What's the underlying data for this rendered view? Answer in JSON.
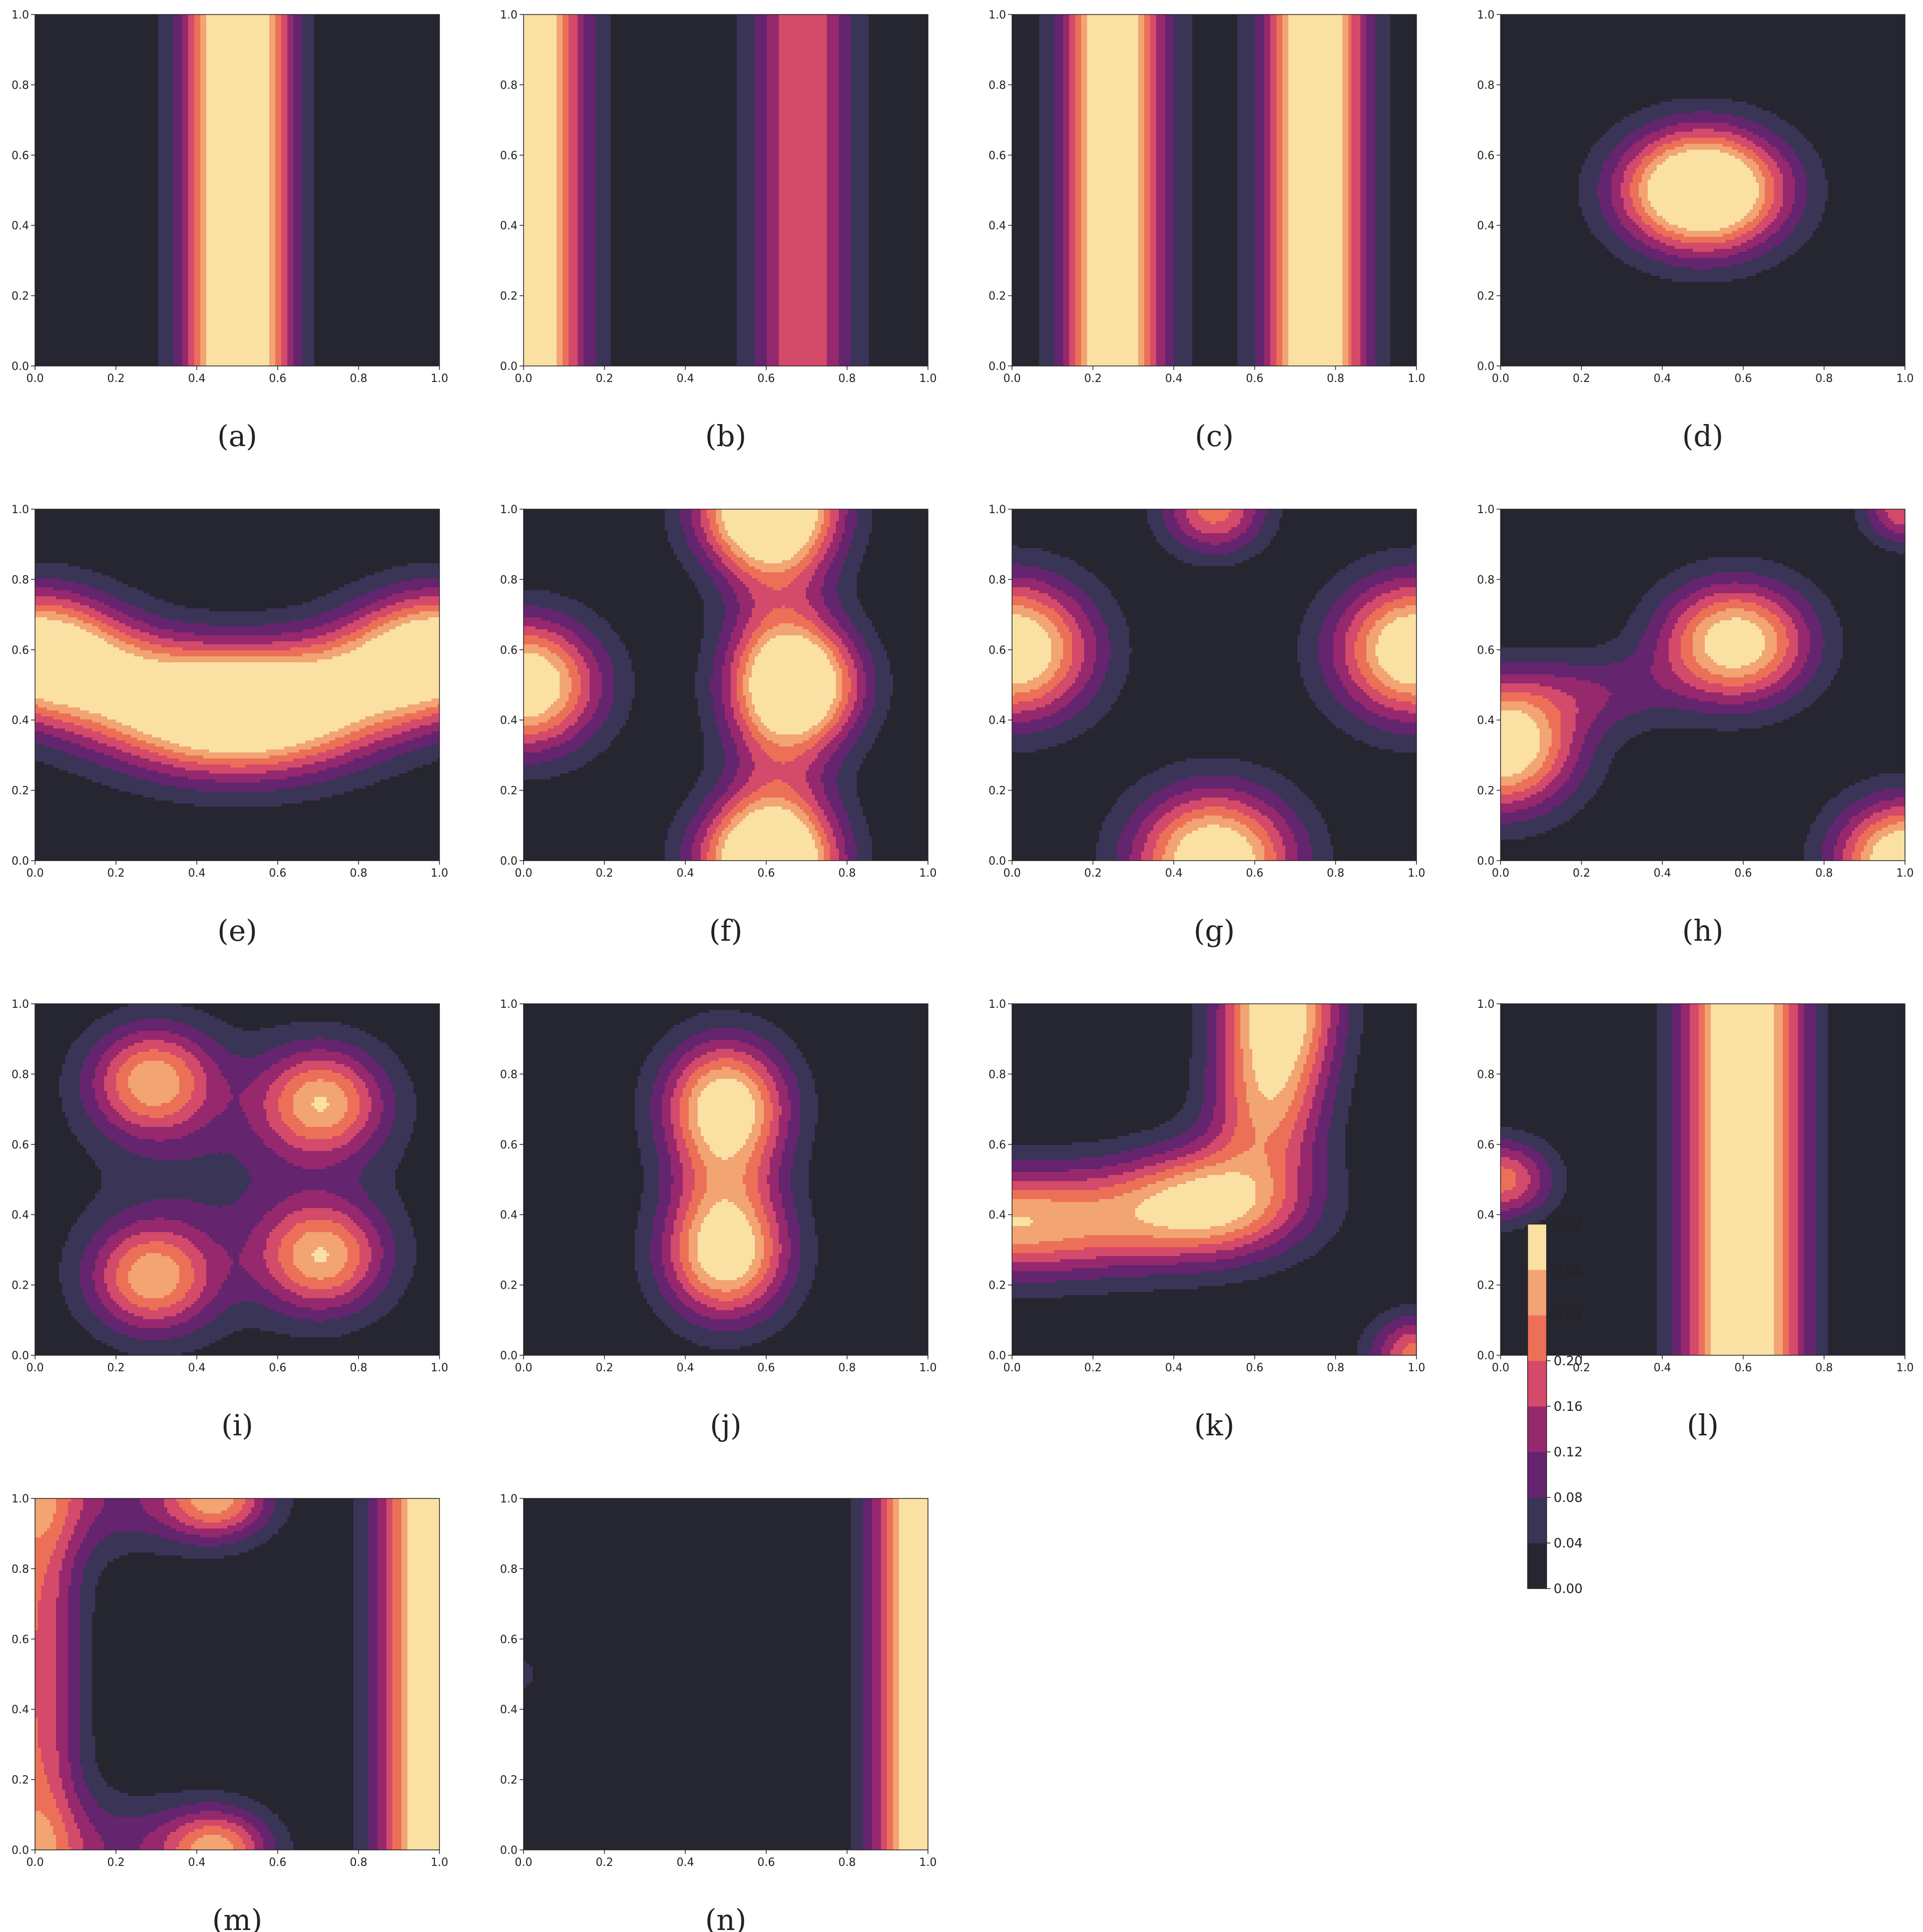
{
  "colors": {
    "levels": [
      "#262630",
      "#3a3457",
      "#64246e",
      "#96286e",
      "#d34a6a",
      "#ec7057",
      "#f2a472",
      "#fbe0a4"
    ],
    "axis": "#222222"
  },
  "chart_data": {
    "type": "heatmap",
    "panels": [
      {
        "label": "(a)",
        "bumps": [
          {
            "kind": "bandx",
            "c": 0.5,
            "s": 0.09,
            "a": 0.4
          }
        ]
      },
      {
        "label": "(b)",
        "bumps": [
          {
            "kind": "bandx",
            "c": 0.0,
            "s": 0.1,
            "a": 0.38
          },
          {
            "kind": "bandx",
            "c": 0.69,
            "s": 0.09,
            "a": 0.2
          }
        ]
      },
      {
        "label": "(c)",
        "bumps": [
          {
            "kind": "bandx",
            "c": 0.25,
            "s": 0.08,
            "a": 0.36
          },
          {
            "kind": "bandx",
            "c": 0.75,
            "s": 0.08,
            "a": 0.36
          },
          {
            "kind": "bandx",
            "c": 0.5,
            "s": 0.5,
            "a": 0.02
          }
        ]
      },
      {
        "label": "(d)",
        "bumps": [
          {
            "kind": "pt",
            "x": 0.5,
            "y": 0.5,
            "sx": 0.14,
            "sy": 0.12,
            "a": 0.45
          }
        ]
      },
      {
        "label": "(e)",
        "bumps": [
          {
            "kind": "pt",
            "x": 0.0,
            "y": 0.6,
            "sx": 0.15,
            "sy": 0.12,
            "a": 0.34
          },
          {
            "kind": "pt",
            "x": 1.0,
            "y": 0.6,
            "sx": 0.15,
            "sy": 0.12,
            "a": 0.34
          },
          {
            "kind": "pt",
            "x": 0.5,
            "y": 0.4,
            "sx": 0.22,
            "sy": 0.12,
            "a": 0.33
          },
          {
            "kind": "pt",
            "x": 0.25,
            "y": 0.5,
            "sx": 0.2,
            "sy": 0.11,
            "a": 0.18
          },
          {
            "kind": "pt",
            "x": 0.75,
            "y": 0.5,
            "sx": 0.2,
            "sy": 0.11,
            "a": 0.18
          }
        ]
      },
      {
        "label": "(f)",
        "bumps": [
          {
            "kind": "pt",
            "x": 0.0,
            "y": 0.5,
            "sx": 0.13,
            "sy": 0.13,
            "a": 0.36
          },
          {
            "kind": "pt",
            "x": 0.6,
            "y": 0.0,
            "sx": 0.12,
            "sy": 0.12,
            "a": 0.36
          },
          {
            "kind": "pt",
            "x": 0.6,
            "y": 1.0,
            "sx": 0.12,
            "sy": 0.12,
            "a": 0.36
          },
          {
            "kind": "pt",
            "x": 0.68,
            "y": 0.5,
            "sx": 0.11,
            "sy": 0.12,
            "a": 0.34
          },
          {
            "kind": "bandx",
            "c": 0.63,
            "s": 0.1,
            "a": 0.12
          }
        ]
      },
      {
        "label": "(g)",
        "bumps": [
          {
            "kind": "pt",
            "x": 0.0,
            "y": 0.6,
            "sx": 0.14,
            "sy": 0.14,
            "a": 0.36
          },
          {
            "kind": "pt",
            "x": 1.0,
            "y": 0.6,
            "sx": 0.14,
            "sy": 0.14,
            "a": 0.36
          },
          {
            "kind": "pt",
            "x": 0.5,
            "y": 0.0,
            "sx": 0.14,
            "sy": 0.14,
            "a": 0.36
          },
          {
            "kind": "pt",
            "x": 0.5,
            "y": 1.0,
            "sx": 0.09,
            "sy": 0.09,
            "a": 0.22
          }
        ]
      },
      {
        "label": "(h)",
        "bumps": [
          {
            "kind": "pt",
            "x": 0.0,
            "y": 0.33,
            "sx": 0.13,
            "sy": 0.13,
            "a": 0.36
          },
          {
            "kind": "pt",
            "x": 0.58,
            "y": 0.62,
            "sx": 0.13,
            "sy": 0.12,
            "a": 0.33
          },
          {
            "kind": "pt",
            "x": 1.0,
            "y": 0.0,
            "sx": 0.12,
            "sy": 0.12,
            "a": 0.36
          },
          {
            "kind": "pt",
            "x": 1.0,
            "y": 1.0,
            "sx": 0.07,
            "sy": 0.07,
            "a": 0.2
          },
          {
            "kind": "pt",
            "x": 0.25,
            "y": 0.48,
            "sx": 0.13,
            "sy": 0.08,
            "a": 0.09
          }
        ]
      },
      {
        "label": "(i)",
        "bumps": [
          {
            "kind": "pt",
            "x": 0.29,
            "y": 0.78,
            "sx": 0.11,
            "sy": 0.11,
            "a": 0.25
          },
          {
            "kind": "pt",
            "x": 0.71,
            "y": 0.72,
            "sx": 0.11,
            "sy": 0.11,
            "a": 0.25
          },
          {
            "kind": "pt",
            "x": 0.29,
            "y": 0.22,
            "sx": 0.11,
            "sy": 0.11,
            "a": 0.25
          },
          {
            "kind": "pt",
            "x": 0.71,
            "y": 0.28,
            "sx": 0.11,
            "sy": 0.11,
            "a": 0.25
          },
          {
            "kind": "pt",
            "x": 0.5,
            "y": 0.5,
            "sx": 0.28,
            "sy": 0.28,
            "a": 0.06
          }
        ]
      },
      {
        "label": "(j)",
        "bumps": [
          {
            "kind": "pt",
            "x": 0.5,
            "y": 0.28,
            "sx": 0.11,
            "sy": 0.13,
            "a": 0.3
          },
          {
            "kind": "pt",
            "x": 0.5,
            "y": 0.72,
            "sx": 0.11,
            "sy": 0.13,
            "a": 0.3
          },
          {
            "kind": "pt",
            "x": 0.5,
            "y": 0.5,
            "sx": 0.1,
            "sy": 0.15,
            "a": 0.12
          }
        ]
      },
      {
        "label": "(k)",
        "bumps": [
          {
            "kind": "pt",
            "x": 0.0,
            "y": 0.38,
            "sx": 0.3,
            "sy": 0.11,
            "a": 0.28
          },
          {
            "kind": "pt",
            "x": 0.5,
            "y": 0.44,
            "sx": 0.16,
            "sy": 0.11,
            "a": 0.26
          },
          {
            "kind": "pt",
            "x": 0.66,
            "y": 1.0,
            "sx": 0.1,
            "sy": 0.16,
            "a": 0.34
          },
          {
            "kind": "pt",
            "x": 0.63,
            "y": 0.7,
            "sx": 0.1,
            "sy": 0.14,
            "a": 0.2
          },
          {
            "kind": "pt",
            "x": 1.0,
            "y": 0.0,
            "sx": 0.08,
            "sy": 0.08,
            "a": 0.22
          }
        ]
      },
      {
        "label": "(l)",
        "bumps": [
          {
            "kind": "bandx",
            "c": 0.6,
            "s": 0.1,
            "a": 0.38
          },
          {
            "kind": "pt",
            "x": 0.0,
            "y": 0.5,
            "sx": 0.09,
            "sy": 0.08,
            "a": 0.22
          }
        ]
      },
      {
        "label": "(m)",
        "bumps": [
          {
            "kind": "bandx",
            "c": 1.0,
            "s": 0.1,
            "a": 0.38
          },
          {
            "kind": "bandx",
            "c": 0.0,
            "s": 0.08,
            "a": 0.2
          },
          {
            "kind": "pt",
            "x": 0.45,
            "y": 1.0,
            "sx": 0.09,
            "sy": 0.08,
            "a": 0.22
          },
          {
            "kind": "pt",
            "x": 0.45,
            "y": 0.0,
            "sx": 0.09,
            "sy": 0.08,
            "a": 0.22
          },
          {
            "kind": "pt",
            "x": 0.2,
            "y": 1.0,
            "sx": 0.22,
            "sy": 0.11,
            "a": 0.1
          },
          {
            "kind": "pt",
            "x": 0.2,
            "y": 0.0,
            "sx": 0.22,
            "sy": 0.11,
            "a": 0.1
          }
        ]
      },
      {
        "label": "(n)",
        "bumps": [
          {
            "kind": "bandx",
            "c": 1.0,
            "s": 0.09,
            "a": 0.38
          },
          {
            "kind": "pt",
            "x": 0.0,
            "y": 0.5,
            "sx": 0.02,
            "sy": 0.03,
            "a": 0.08
          }
        ]
      }
    ],
    "xlim": [
      0,
      1
    ],
    "ylim": [
      0,
      1
    ],
    "x_ticks": [
      "0.0",
      "0.2",
      "0.4",
      "0.6",
      "0.8",
      "1.0"
    ],
    "y_ticks": [
      "0.0",
      "0.2",
      "0.4",
      "0.6",
      "0.8",
      "1.0"
    ],
    "colorbar": {
      "levels": [
        0.0,
        0.04,
        0.08,
        0.12,
        0.16,
        0.2,
        0.24,
        0.28,
        0.32
      ],
      "tick_labels": [
        "0.00",
        "0.04",
        "0.08",
        "0.12",
        "0.16",
        "0.20",
        "0.24",
        "0.28",
        "0.32"
      ]
    }
  }
}
